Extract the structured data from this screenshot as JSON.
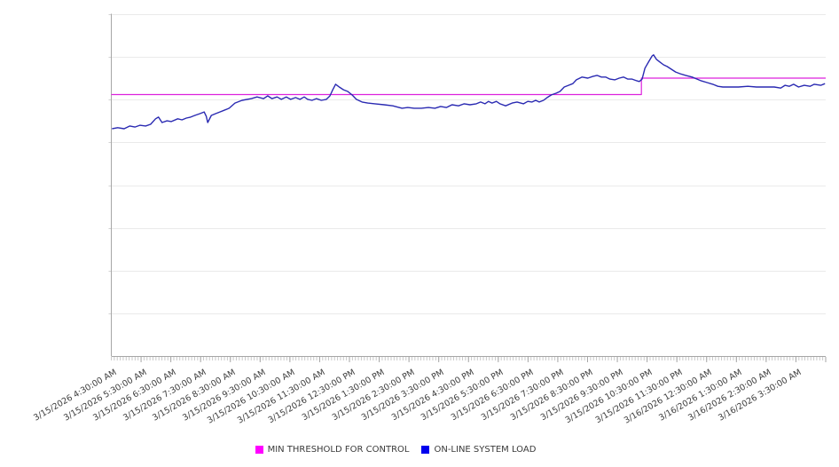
{
  "colors": {
    "background": "#ffffff",
    "gridline": "#eaeaea",
    "axis": "#a6a6a6",
    "minor_tick": "#c9c9c9",
    "y_tick": "#d2d2d2",
    "label_text": "#3c3c3c",
    "threshold_line": "#dd22dd",
    "load_line": "#2a2ab2"
  },
  "legend": {
    "items": [
      {
        "label": "MIN THRESHOLD FOR CONTROL",
        "color": "#ff00ff"
      },
      {
        "label": "ON-LINE SYSTEM LOAD",
        "color": "#0000ee"
      }
    ]
  },
  "chart_data": {
    "type": "line",
    "title": "",
    "legend_position": "bottom",
    "x_axis": {
      "tick_labels": [
        "3/15/2026 4:30:00 AM",
        "3/15/2026 5:30:00 AM",
        "3/15/2026 6:30:00 AM",
        "3/15/2026 7:30:00 AM",
        "3/15/2026 8:30:00 AM",
        "3/15/2026 9:30:00 AM",
        "3/15/2026 10:30:00 AM",
        "3/15/2026 11:30:00 AM",
        "3/15/2026 12:30:00 PM",
        "3/15/2026 1:30:00 PM",
        "3/15/2026 2:30:00 PM",
        "3/15/2026 3:30:00 PM",
        "3/15/2026 4:30:00 PM",
        "3/15/2026 5:30:00 PM",
        "3/15/2026 6:30:00 PM",
        "3/15/2026 7:30:00 PM",
        "3/15/2026 8:30:00 PM",
        "3/15/2026 9:30:00 PM",
        "3/15/2026 10:30:00 PM",
        "3/15/2026 11:30:00 PM",
        "3/16/2026 12:30:00 AM",
        "3/16/2026 1:30:00 AM",
        "3/16/2026 2:30:00 AM",
        "3/16/2026 3:30:00 AM"
      ],
      "label_rotation_deg": -30,
      "minor_tick_count": 240,
      "hour_tick_count": 24
    },
    "y_axis": {
      "tick_labels_visible": false,
      "gridline_count": 8,
      "units": "percent_of_plot_height",
      "range": [
        0,
        100
      ]
    },
    "series": [
      {
        "name": "MIN THRESHOLD FOR CONTROL",
        "shape": "step",
        "color": "#dd22dd",
        "points": [
          [
            0,
            76.5
          ],
          [
            74.2,
            76.5
          ],
          [
            74.2,
            81.3
          ],
          [
            100,
            81.3
          ]
        ]
      },
      {
        "name": "ON-LINE SYSTEM LOAD",
        "shape": "line",
        "color": "#2a2ab2",
        "points": [
          [
            0.1,
            66.5
          ],
          [
            0.9,
            66.8
          ],
          [
            1.8,
            66.5
          ],
          [
            2.6,
            67.3
          ],
          [
            3.3,
            67.0
          ],
          [
            4.0,
            67.5
          ],
          [
            4.8,
            67.3
          ],
          [
            5.5,
            67.8
          ],
          [
            6.2,
            69.4
          ],
          [
            6.6,
            69.9
          ],
          [
            7.1,
            68.3
          ],
          [
            7.8,
            68.8
          ],
          [
            8.4,
            68.6
          ],
          [
            9.3,
            69.4
          ],
          [
            9.9,
            69.1
          ],
          [
            10.5,
            69.6
          ],
          [
            11.1,
            69.9
          ],
          [
            11.7,
            70.4
          ],
          [
            12.4,
            70.9
          ],
          [
            13.0,
            71.4
          ],
          [
            13.3,
            70.1
          ],
          [
            13.5,
            68.3
          ],
          [
            14.0,
            70.4
          ],
          [
            14.6,
            70.9
          ],
          [
            15.2,
            71.4
          ],
          [
            15.8,
            71.9
          ],
          [
            16.5,
            72.5
          ],
          [
            17.3,
            74.0
          ],
          [
            18.3,
            74.8
          ],
          [
            19.6,
            75.3
          ],
          [
            20.4,
            75.8
          ],
          [
            21.3,
            75.3
          ],
          [
            21.9,
            76.1
          ],
          [
            22.5,
            75.3
          ],
          [
            23.2,
            75.8
          ],
          [
            23.8,
            75.1
          ],
          [
            24.5,
            75.8
          ],
          [
            25.1,
            75.1
          ],
          [
            25.8,
            75.6
          ],
          [
            26.4,
            75.1
          ],
          [
            27.0,
            75.8
          ],
          [
            27.5,
            75.1
          ],
          [
            28.1,
            74.8
          ],
          [
            28.7,
            75.3
          ],
          [
            29.4,
            74.8
          ],
          [
            30.1,
            75.1
          ],
          [
            30.6,
            76.1
          ],
          [
            31.0,
            77.9
          ],
          [
            31.4,
            79.5
          ],
          [
            31.9,
            78.7
          ],
          [
            32.5,
            77.9
          ],
          [
            33.1,
            77.4
          ],
          [
            33.7,
            76.4
          ],
          [
            34.3,
            75.1
          ],
          [
            35.1,
            74.3
          ],
          [
            35.9,
            74.0
          ],
          [
            36.9,
            73.8
          ],
          [
            38.2,
            73.5
          ],
          [
            39.4,
            73.2
          ],
          [
            40.7,
            72.5
          ],
          [
            41.5,
            72.7
          ],
          [
            42.4,
            72.5
          ],
          [
            43.4,
            72.5
          ],
          [
            44.4,
            72.7
          ],
          [
            45.3,
            72.5
          ],
          [
            46.1,
            73.0
          ],
          [
            46.9,
            72.7
          ],
          [
            47.7,
            73.5
          ],
          [
            48.6,
            73.2
          ],
          [
            49.4,
            73.8
          ],
          [
            50.2,
            73.5
          ],
          [
            51.1,
            73.8
          ],
          [
            51.7,
            74.3
          ],
          [
            52.3,
            73.8
          ],
          [
            52.8,
            74.5
          ],
          [
            53.3,
            74.0
          ],
          [
            53.9,
            74.5
          ],
          [
            54.4,
            73.8
          ],
          [
            55.2,
            73.2
          ],
          [
            56.1,
            74.0
          ],
          [
            56.8,
            74.3
          ],
          [
            57.7,
            73.8
          ],
          [
            58.3,
            74.5
          ],
          [
            58.9,
            74.3
          ],
          [
            59.4,
            74.8
          ],
          [
            59.9,
            74.3
          ],
          [
            60.5,
            74.8
          ],
          [
            61.0,
            75.6
          ],
          [
            61.6,
            76.4
          ],
          [
            62.3,
            76.9
          ],
          [
            62.8,
            77.4
          ],
          [
            63.4,
            78.7
          ],
          [
            64.0,
            79.2
          ],
          [
            64.6,
            79.7
          ],
          [
            65.1,
            80.8
          ],
          [
            65.9,
            81.6
          ],
          [
            66.7,
            81.3
          ],
          [
            67.4,
            81.8
          ],
          [
            68.0,
            82.1
          ],
          [
            68.6,
            81.6
          ],
          [
            69.2,
            81.6
          ],
          [
            69.8,
            81.0
          ],
          [
            70.5,
            80.8
          ],
          [
            71.1,
            81.3
          ],
          [
            71.7,
            81.6
          ],
          [
            72.3,
            81.0
          ],
          [
            72.9,
            81.0
          ],
          [
            73.6,
            80.5
          ],
          [
            73.9,
            80.3
          ],
          [
            74.3,
            81.0
          ],
          [
            74.7,
            84.2
          ],
          [
            75.2,
            86.0
          ],
          [
            75.7,
            87.8
          ],
          [
            75.9,
            88.1
          ],
          [
            76.3,
            86.8
          ],
          [
            76.8,
            86.0
          ],
          [
            77.3,
            85.2
          ],
          [
            77.8,
            84.7
          ],
          [
            78.4,
            83.9
          ],
          [
            79.0,
            83.1
          ],
          [
            79.6,
            82.6
          ],
          [
            80.4,
            82.1
          ],
          [
            81.3,
            81.6
          ],
          [
            82.0,
            81.0
          ],
          [
            82.6,
            80.5
          ],
          [
            83.4,
            80.0
          ],
          [
            84.2,
            79.5
          ],
          [
            84.9,
            78.9
          ],
          [
            85.6,
            78.7
          ],
          [
            86.6,
            78.7
          ],
          [
            87.8,
            78.7
          ],
          [
            89.1,
            78.9
          ],
          [
            90.3,
            78.7
          ],
          [
            91.6,
            78.7
          ],
          [
            92.8,
            78.7
          ],
          [
            93.7,
            78.4
          ],
          [
            94.3,
            79.2
          ],
          [
            94.9,
            78.9
          ],
          [
            95.5,
            79.5
          ],
          [
            96.2,
            78.7
          ],
          [
            97.0,
            79.2
          ],
          [
            97.8,
            78.9
          ],
          [
            98.4,
            79.5
          ],
          [
            99.3,
            79.2
          ],
          [
            99.9,
            79.7
          ]
        ]
      }
    ]
  }
}
